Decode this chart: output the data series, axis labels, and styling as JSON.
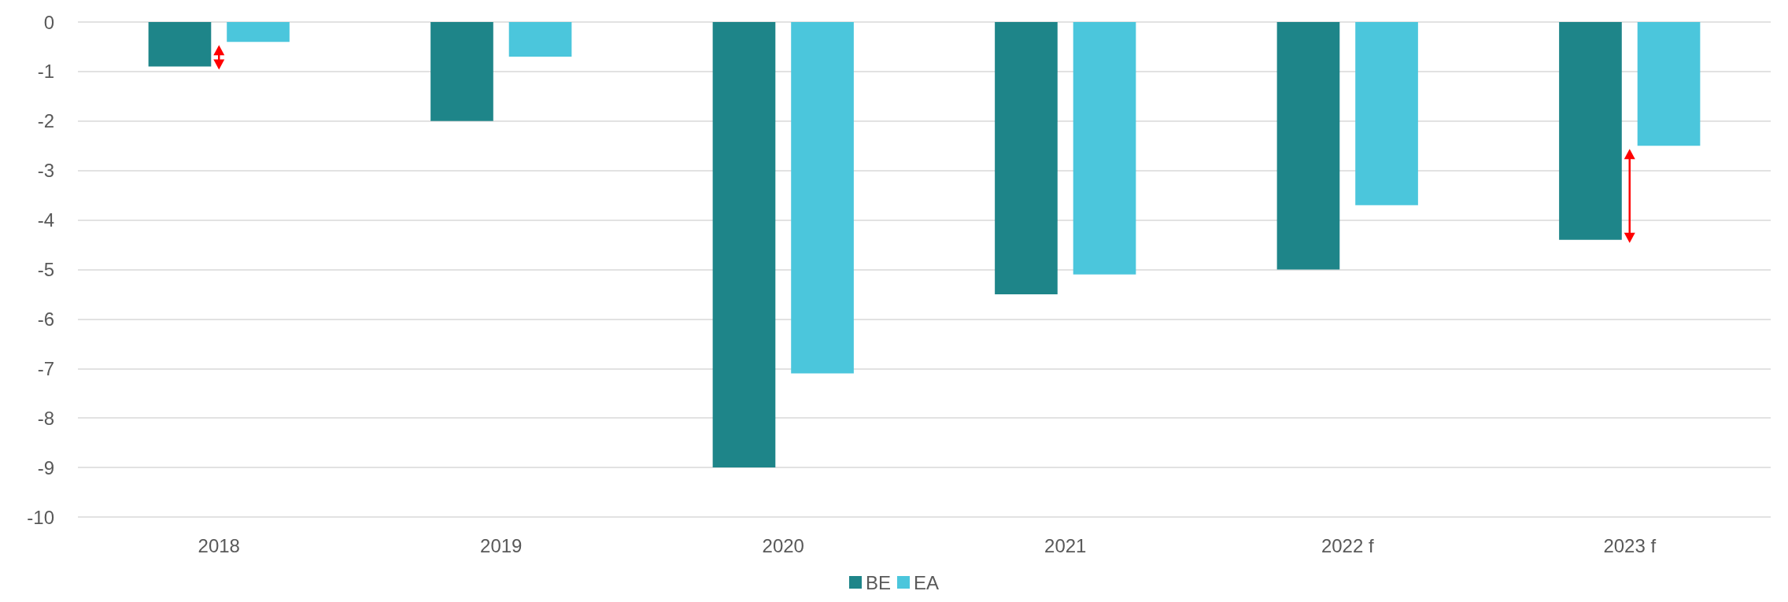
{
  "chart_data": {
    "type": "bar",
    "categories": [
      "2018",
      "2019",
      "2020",
      "2021",
      "2022 f",
      "2023 f"
    ],
    "series": [
      {
        "name": "BE",
        "color": "#1e8589",
        "values": [
          -0.9,
          -2.0,
          -9.0,
          -5.5,
          -5.0,
          -4.4
        ]
      },
      {
        "name": "EA",
        "color": "#4bc6dc",
        "values": [
          -0.4,
          -0.7,
          -7.1,
          -5.1,
          -3.7,
          -2.5
        ]
      }
    ],
    "ylim": [
      -10,
      0
    ],
    "yticks": [
      -10,
      -9,
      -8,
      -7,
      -6,
      -5,
      -4,
      -3,
      -2,
      -1,
      0
    ],
    "grid": "y",
    "legend": "bottom"
  }
}
